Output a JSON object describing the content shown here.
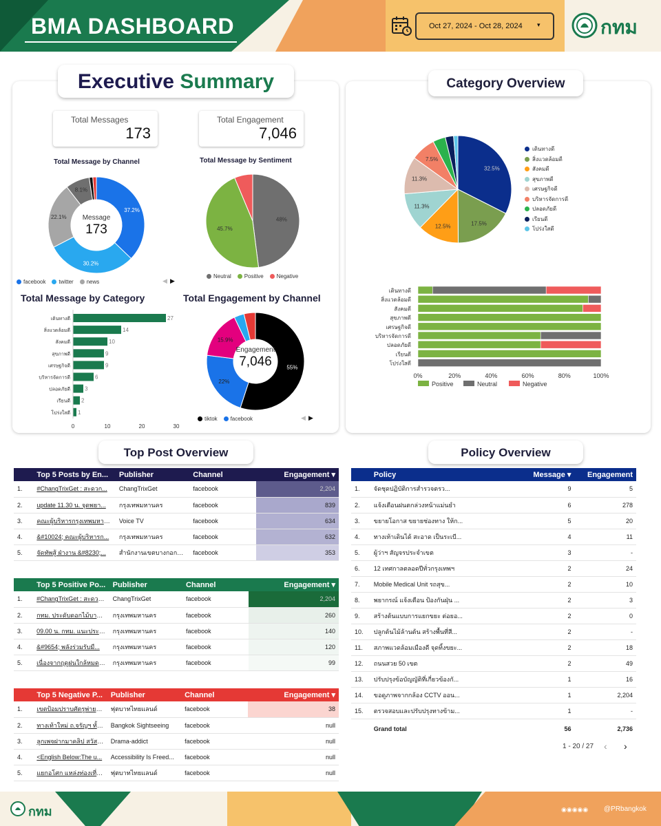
{
  "header": {
    "title": "BMA DASHBOARD",
    "date_range": "Oct 27, 2024 - Oct 28, 2024",
    "logo_text": "กทม"
  },
  "colors": {
    "navy": "#0b2e8c",
    "green": "#1a7a4e",
    "header_dark": "#1e1b4f",
    "positive": "#7cb342",
    "neutral": "#6f6f6f",
    "negative": "#ef5b5b"
  },
  "executive": {
    "title_a": "Executive",
    "title_b": "Summary",
    "kpis": [
      {
        "label": "Total Messages",
        "value": "173"
      },
      {
        "label": "Total Engagement",
        "value": "7,046"
      }
    ],
    "channel_chart": {
      "title": "Total Message by Channel",
      "center_label": "Message",
      "center_value": "173",
      "slices": [
        {
          "name": "facebook",
          "pct": 37.2,
          "label": "37.2%",
          "color": "#1a73e8"
        },
        {
          "name": "twitter",
          "pct": 30.2,
          "label": "30.2%",
          "color": "#29a8ef"
        },
        {
          "name": "news",
          "pct": 22.1,
          "label": "22.1%",
          "color": "#a6a6a6"
        },
        {
          "name": "",
          "pct": 8.1,
          "label": "8.1%",
          "color": "#6f6f6f"
        },
        {
          "name": "",
          "pct": 1.2,
          "label": "",
          "color": "#111111"
        },
        {
          "name": "",
          "pct": 1.2,
          "label": "",
          "color": "#e53935"
        }
      ],
      "legend": [
        "facebook",
        "twitter",
        "news"
      ]
    },
    "sentiment_chart": {
      "title": "Total Message by Sentiment",
      "slices": [
        {
          "name": "Neutral",
          "pct": 48,
          "label": "48%",
          "color": "#6f6f6f"
        },
        {
          "name": "Positive",
          "pct": 45.7,
          "label": "45.7%",
          "color": "#7cb342"
        },
        {
          "name": "Negative",
          "pct": 6.3,
          "label": "",
          "color": "#ef5b5b"
        }
      ]
    },
    "category_chart": {
      "title": "Total Message by Category",
      "categories": [
        "เดินทางดี",
        "สิ่งแวดล้อมดี",
        "สังคมดี",
        "สุขภาพดี",
        "เศรษฐกิจดี",
        "บริหารจัดการดี",
        "ปลอดภัยดี",
        "เรียนดี",
        "โปร่งใสดี"
      ],
      "values": [
        27,
        14,
        10,
        9,
        9,
        6,
        3,
        2,
        1
      ],
      "xticks": [
        "0",
        "10",
        "20",
        "30"
      ],
      "xmax": 30
    },
    "engagement_chart": {
      "title": "Total Engagement by Channel",
      "center_label": "Engagement",
      "center_value": "7,046",
      "slices": [
        {
          "name": "tiktok",
          "pct": 55,
          "label": "55%",
          "color": "#000000"
        },
        {
          "name": "facebook",
          "pct": 22,
          "label": "22%",
          "color": "#1a73e8"
        },
        {
          "name": "",
          "pct": 15.9,
          "label": "15.9%",
          "color": "#e3007e"
        },
        {
          "name": "",
          "pct": 3.3,
          "label": "",
          "color": "#29a8ef"
        },
        {
          "name": "",
          "pct": 3.8,
          "label": "",
          "color": "#e53935"
        }
      ],
      "legend": [
        "tiktok",
        "facebook"
      ]
    }
  },
  "category_overview": {
    "title": "Category Overview",
    "pie": [
      {
        "name": "เดินทางดี",
        "pct": 32.5,
        "label": "32.5%",
        "color": "#0b2e8c"
      },
      {
        "name": "สิ่งแวดล้อมดี",
        "pct": 17.5,
        "label": "17.5%",
        "color": "#7a9e4f"
      },
      {
        "name": "สังคมดี",
        "pct": 12.5,
        "label": "12.5%",
        "color": "#ff9e16"
      },
      {
        "name": "สุขภาพดี",
        "pct": 11.3,
        "label": "11.3%",
        "color": "#9fd4d1"
      },
      {
        "name": "เศรษฐกิจดี",
        "pct": 11.3,
        "label": "11.3%",
        "color": "#dcbbae"
      },
      {
        "name": "บริหารจัดการดี",
        "pct": 7.5,
        "label": "7.5%",
        "color": "#f28066"
      },
      {
        "name": "ปลอดภัยดี",
        "pct": 3.8,
        "label": "",
        "color": "#2bb24c"
      },
      {
        "name": "เรียนดี",
        "pct": 2.5,
        "label": "",
        "color": "#0a1f5c"
      },
      {
        "name": "โปร่งใสดี",
        "pct": 1.3,
        "label": "",
        "color": "#5ec6e8"
      }
    ],
    "stacked": {
      "categories": [
        "เดินทางดี",
        "สิ่งแวดล้อมดี",
        "สังคมดี",
        "สุขภาพดี",
        "เศรษฐกิจดี",
        "บริหารจัดการดี",
        "ปลอดภัยดี",
        "เรียนดี",
        "โปร่งใสดี"
      ],
      "series": [
        {
          "name": "Positive",
          "color": "#7cb342",
          "values": [
            8,
            93,
            90,
            100,
            100,
            67,
            67,
            100,
            0
          ]
        },
        {
          "name": "Neutral",
          "color": "#6f6f6f",
          "values": [
            62,
            7,
            0,
            0,
            0,
            33,
            0,
            0,
            100
          ]
        },
        {
          "name": "Negative",
          "color": "#ef5b5b",
          "values": [
            30,
            0,
            10,
            0,
            0,
            0,
            33,
            0,
            0
          ]
        }
      ],
      "xticks": [
        "0%",
        "20%",
        "40%",
        "60%",
        "80%",
        "100%"
      ]
    }
  },
  "top_posts": {
    "title": "Top Post Overview",
    "all": {
      "headers": [
        "Top 5 Posts by En...",
        "Publisher",
        "Channel",
        "Engagement ▾"
      ],
      "rows": [
        [
          "1.",
          "#ChangTrixGet : สะดวก...",
          "ChangTrixGet",
          "facebook",
          "2,204"
        ],
        [
          "2.",
          "update 11.30 น. จุดพยา...",
          "กรุงเทพมหานคร",
          "facebook",
          "839"
        ],
        [
          "3.",
          "คณะผู้บริหารกรุงเทพมหานค...",
          "Voice TV",
          "facebook",
          "634"
        ],
        [
          "4.",
          "&#10024; คณะผู้บริหารก...",
          "กรุงเทพมหานคร",
          "facebook",
          "632"
        ],
        [
          "5.",
          "จัดทัพสู้ ฝ่างาน &#8230;...",
          "สำนักงานเขตบางกอกน้อ...",
          "facebook",
          "353"
        ]
      ]
    },
    "positive": {
      "headers": [
        "Top 5 Positive Po...",
        "Publisher",
        "Channel",
        "Engagement ▾"
      ],
      "rows": [
        [
          "1.",
          "#ChangTrixGet : สะดวก...",
          "ChangTrixGet",
          "facebook",
          "2,204"
        ],
        [
          "2.",
          "กทม. ประดับดอกไม้บานส...",
          "กรุงเทพมหานคร",
          "facebook",
          "260"
        ],
        [
          "3.",
          "09.00 น. กทม. แนะประช...",
          "กรุงเทพมหานคร",
          "facebook",
          "140"
        ],
        [
          "4.",
          "&#9654; พลังร่วมรับมื...",
          "กรุงเทพมหานคร",
          "facebook",
          "120"
        ],
        [
          "5.",
          "เนื่องจากฤดูฝนใกล้หมดลง ...",
          "กรุงเทพมหานคร",
          "facebook",
          "99"
        ]
      ]
    },
    "negative": {
      "headers": [
        "Top 5 Negative P...",
        "Publisher",
        "Channel",
        "Engagement ▾"
      ],
      "rows": [
        [
          "1.",
          "เขตป้อมปราบศัตรูพ่ายเห็น...",
          "ฟุตบาทไทยแลนด์",
          "facebook",
          "38"
        ],
        [
          "2.",
          "ทางเท้าใหม่ ถ.จรัญฯ ทั้งสอ...",
          "Bangkok Sightseeing",
          "facebook",
          "null"
        ],
        [
          "3.",
          "ลูกเพจฝากมาคลิป สวัสดีค...",
          "Drama-addict",
          "facebook",
          "null"
        ],
        [
          "4.",
          "<English Below:The u...",
          "Accessibility Is Freed...",
          "facebook",
          "null"
        ],
        [
          "5.",
          "แยกอโศก แหล่งท่องเที่ยว...",
          "ฟุตบาทไทยแลนด์",
          "facebook",
          "null"
        ]
      ]
    }
  },
  "policy": {
    "title": "Policy Overview",
    "headers": [
      "Policy",
      "Message ▾",
      "Engagement"
    ],
    "rows": [
      [
        "1.",
        "จัดชุดปฏิบัติการสำรวจตรว...",
        "9",
        "5"
      ],
      [
        "2.",
        "แจ้งเตือนฝนตกล่วงหน้าแม่นยำ",
        "6",
        "278"
      ],
      [
        "3.",
        "ขยายโอกาส ขยายช่องทาง ให้ก...",
        "5",
        "20"
      ],
      [
        "4.",
        "ทางเท้าเดินได้ สะอาด เป็นระเบี...",
        "4",
        "11"
      ],
      [
        "5.",
        "ผู้ว่าฯ สัญจรประจำเขต",
        "3",
        "-"
      ],
      [
        "6.",
        "12 เทศกาลตลอดปีทั่วกรุงเทพฯ",
        "2",
        "24"
      ],
      [
        "7.",
        "Mobile Medical Unit รถสุข...",
        "2",
        "10"
      ],
      [
        "8.",
        "พยากรณ์ แจ้งเตือน ป้องกันฝุ่น ...",
        "2",
        "3"
      ],
      [
        "9.",
        "สร้างต้นแบบการแยกขยะ ต่อยอ...",
        "2",
        "0"
      ],
      [
        "10.",
        "ปลูกต้นไม้ล้านต้น สร้างพื้นที่สี...",
        "2",
        "-"
      ],
      [
        "11.",
        "สภาพแวดล้อมเมืองดี จุดทิ้งขยะ...",
        "2",
        "18"
      ],
      [
        "12.",
        "ถนนสวย 50 เขต",
        "2",
        "49"
      ],
      [
        "13.",
        "ปรับปรุงข้อบัญญัติที่เกี่ยวข้องกั...",
        "1",
        "16"
      ],
      [
        "14.",
        "ขอดูภาพจากกล้อง CCTV ออน...",
        "1",
        "2,204"
      ],
      [
        "15.",
        "ตรวจสอบและปรับปรุงทางข้าม...",
        "1",
        "-"
      ]
    ],
    "total": [
      "Grand total",
      "56",
      "2,736"
    ],
    "pagination": "1 - 20 / 27"
  },
  "footer": {
    "logo_text": "กทม",
    "handle": "@PRbangkok"
  }
}
